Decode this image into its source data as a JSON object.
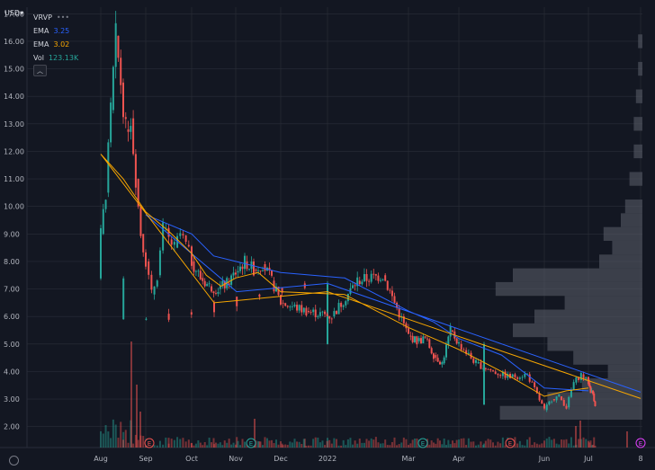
{
  "header": {
    "currency": "USD"
  },
  "legend": {
    "symbol": "VRVP",
    "more": "•••",
    "ema1": {
      "label": "EMA",
      "value": "3.25",
      "color": "#2962ff"
    },
    "ema2": {
      "label": "EMA",
      "value": "3.02",
      "color": "#f7a600"
    },
    "vol": {
      "label": "Vol",
      "value": "123.13K",
      "color": "#26a69a"
    },
    "collapse_icon": "chevron-up-icon"
  },
  "colors": {
    "up": "#26a69a",
    "down": "#ef5350",
    "bg": "#131722",
    "grid": "#2a2e39"
  },
  "chart_data": {
    "type": "candlestick",
    "y_axis": {
      "min": 1.5,
      "max": 17.5,
      "ticks": [
        "17.00",
        "16.00",
        "15.00",
        "14.00",
        "13.00",
        "12.00",
        "11.00",
        "10.00",
        "9.00",
        "8.00",
        "7.00",
        "6.00",
        "5.00",
        "4.00",
        "3.00",
        "2.00"
      ]
    },
    "x_axis": {
      "ticks": [
        "Aug",
        "Sep",
        "Oct",
        "Nov",
        "Dec",
        "2022",
        "Mar",
        "Apr",
        "Jun",
        "Jul",
        "8"
      ]
    },
    "events": [
      {
        "label": "E",
        "kind": "earnings-red",
        "month": "Sep"
      },
      {
        "label": "E",
        "kind": "earnings-green",
        "month": "Nov"
      },
      {
        "label": "E",
        "kind": "earnings-green",
        "month": "Mar"
      },
      {
        "label": "E",
        "kind": "earnings-red",
        "month": "May"
      },
      {
        "label": "E",
        "kind": "earnings-purple",
        "month": "Aug"
      }
    ],
    "close_path": [
      [
        "Aug",
        9.0
      ],
      [
        "Aug",
        10.5
      ],
      [
        "Aug",
        13.5
      ],
      [
        "Aug",
        16.2
      ],
      [
        "Aug",
        14.5
      ],
      [
        "Aug",
        12.8
      ],
      [
        "Aug",
        13.2
      ],
      [
        "Aug",
        11.0
      ],
      [
        "Aug",
        9.0
      ],
      [
        "Sep",
        8.0
      ],
      [
        "Sep",
        6.8
      ],
      [
        "Sep",
        7.5
      ],
      [
        "Sep",
        9.2
      ],
      [
        "Sep",
        8.8
      ],
      [
        "Sep",
        8.5
      ],
      [
        "Sep",
        9.0
      ],
      [
        "Sep",
        8.6
      ],
      [
        "Oct",
        8.0
      ],
      [
        "Oct",
        7.4
      ],
      [
        "Oct",
        7.1
      ],
      [
        "Oct",
        7.0
      ],
      [
        "Oct",
        7.2
      ],
      [
        "Nov",
        7.6
      ],
      [
        "Nov",
        8.0
      ],
      [
        "Nov",
        7.7
      ],
      [
        "Nov",
        7.9
      ],
      [
        "Nov",
        7.3
      ],
      [
        "Dec",
        6.5
      ],
      [
        "Dec",
        6.2
      ],
      [
        "Dec",
        6.0
      ],
      [
        "Dec",
        7.3
      ],
      [
        "Dec",
        7.5
      ],
      [
        "2022",
        7.2
      ],
      [
        "2022",
        6.8
      ],
      [
        "2022",
        6.5
      ],
      [
        "2022",
        6.1
      ],
      [
        "2022",
        5.9
      ],
      [
        "Mar",
        5.3
      ],
      [
        "Mar",
        5.1
      ],
      [
        "Mar",
        5.2
      ],
      [
        "Mar",
        4.6
      ],
      [
        "Mar",
        4.3
      ],
      [
        "Mar",
        5.5
      ],
      [
        "Apr",
        5.0
      ],
      [
        "Apr",
        4.3
      ],
      [
        "Apr",
        4.0
      ],
      [
        "Apr",
        3.8
      ],
      [
        "Apr",
        3.9
      ],
      [
        "Jun",
        2.6
      ],
      [
        "Jun",
        3.0
      ],
      [
        "Jun",
        3.1
      ],
      [
        "Jun",
        2.7
      ],
      [
        "Jun",
        3.6
      ],
      [
        "Jun",
        3.9
      ],
      [
        "Jul",
        3.6
      ],
      [
        "Jul",
        3.3
      ],
      [
        "Jul",
        3.2
      ],
      [
        "Jul",
        2.8
      ],
      [
        "8",
        2.8
      ]
    ],
    "ema_slow_path": [
      [
        "Sep",
        9.7
      ],
      [
        "Oct",
        9.0
      ],
      [
        "Oct",
        8.2
      ],
      [
        "Nov",
        8.0
      ],
      [
        "Nov",
        7.8
      ],
      [
        "Dec",
        7.6
      ],
      [
        "Dec",
        7.4
      ],
      [
        "2022",
        7.2
      ],
      [
        "2022",
        6.9
      ],
      [
        "Mar",
        6.2
      ],
      [
        "Mar",
        5.8
      ],
      [
        "Apr",
        5.2
      ],
      [
        "Apr",
        4.6
      ],
      [
        "Jun",
        3.4
      ],
      [
        "Jul",
        3.3
      ],
      [
        "8",
        3.25
      ]
    ],
    "ema_fast_path": [
      [
        "Aug",
        11.9
      ],
      [
        "Aug",
        11.0
      ],
      [
        "Sep",
        9.8
      ],
      [
        "Sep",
        9.1
      ],
      [
        "Oct",
        8.3
      ],
      [
        "Oct",
        7.5
      ],
      [
        "Oct",
        7.1
      ],
      [
        "Nov",
        7.4
      ],
      [
        "Nov",
        7.6
      ],
      [
        "Dec",
        6.9
      ],
      [
        "Dec",
        6.8
      ],
      [
        "2022",
        6.9
      ],
      [
        "2022",
        6.5
      ],
      [
        "Mar",
        5.6
      ],
      [
        "Mar",
        5.2
      ],
      [
        "Apr",
        4.8
      ],
      [
        "Apr",
        4.0
      ],
      [
        "Jun",
        3.1
      ],
      [
        "Jun",
        3.3
      ],
      [
        "Jul",
        3.4
      ],
      [
        "8",
        3.02
      ]
    ]
  }
}
